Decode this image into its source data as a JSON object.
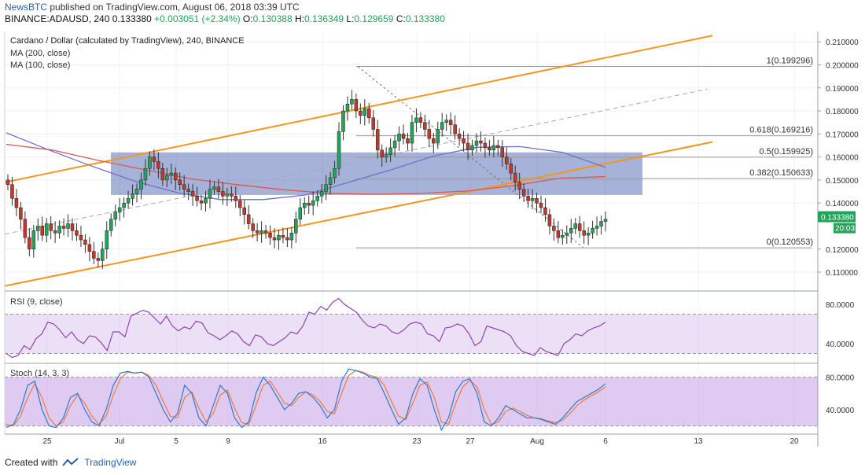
{
  "header": {
    "publisher": "NewsBTC",
    "published_text": "published on TradingView.com, August 06, 2018 03:39 UTC",
    "symbol_line": "BINANCE:ADAUSD, 240",
    "last": "0.133380",
    "change": "+0.003051 (+2.34%)",
    "o_label": "O:",
    "o_value": "0.130388",
    "h_label": "H:",
    "h_value": "0.136349",
    "l_label": "L:",
    "l_value": "0.129659",
    "c_label": "C:",
    "c_value": "0.133380"
  },
  "legend": {
    "title": "Cardano / Dollar (calculated by TradingView), 240, BINANCE",
    "ma200": "MA (200, close)",
    "ma100": "MA (100, close)",
    "rsi": "RSI (9, close)",
    "stoch": "Stoch (14, 3, 3)"
  },
  "footer": {
    "created_with": "Created with",
    "brand": "TradingView"
  },
  "price_tag": {
    "value": "0.133380",
    "countdown": "20:03"
  },
  "colors": {
    "up": "#22a45a",
    "down": "#c0392b",
    "channel": "#f7941d",
    "ma200": "#e05555",
    "ma100": "#6a74c9",
    "zone": "#5c73b8",
    "rsi": "#8e44ad",
    "stoch_k": "#2b7bd6",
    "stoch_d": "#f07a3c",
    "fib": "#999999"
  },
  "chart_data": [
    {
      "type": "candlestick",
      "title": "Cardano / Dollar (calculated by TradingView), 240, BINANCE",
      "y_ticks": [
        "0.210000",
        "0.200000",
        "0.190000",
        "0.180000",
        "0.170000",
        "0.160000",
        "0.150000",
        "0.140000",
        "0.120000",
        "0.110000"
      ],
      "ylim": [
        0.1025,
        0.2145
      ],
      "x_ticks": [
        "25",
        "Jul",
        "5",
        "9",
        "16",
        "23",
        "27",
        "Aug",
        "6",
        "13",
        "20"
      ],
      "closes": [
        0.148,
        0.142,
        0.138,
        0.133,
        0.125,
        0.12,
        0.128,
        0.13,
        0.126,
        0.131,
        0.128,
        0.127,
        0.13,
        0.129,
        0.131,
        0.128,
        0.126,
        0.124,
        0.122,
        0.119,
        0.116,
        0.115,
        0.12,
        0.128,
        0.133,
        0.136,
        0.138,
        0.14,
        0.142,
        0.144,
        0.146,
        0.15,
        0.155,
        0.16,
        0.158,
        0.155,
        0.15,
        0.152,
        0.153,
        0.15,
        0.148,
        0.146,
        0.145,
        0.143,
        0.141,
        0.14,
        0.142,
        0.146,
        0.147,
        0.145,
        0.143,
        0.144,
        0.143,
        0.141,
        0.138,
        0.135,
        0.131,
        0.128,
        0.127,
        0.128,
        0.127,
        0.125,
        0.124,
        0.126,
        0.125,
        0.124,
        0.127,
        0.133,
        0.138,
        0.14,
        0.139,
        0.141,
        0.143,
        0.145,
        0.148,
        0.151,
        0.155,
        0.171,
        0.18,
        0.183,
        0.185,
        0.18,
        0.178,
        0.181,
        0.177,
        0.172,
        0.163,
        0.16,
        0.161,
        0.164,
        0.167,
        0.17,
        0.168,
        0.166,
        0.175,
        0.177,
        0.175,
        0.172,
        0.168,
        0.166,
        0.172,
        0.175,
        0.176,
        0.174,
        0.17,
        0.168,
        0.166,
        0.163,
        0.165,
        0.167,
        0.166,
        0.164,
        0.163,
        0.165,
        0.164,
        0.16,
        0.157,
        0.153,
        0.149,
        0.146,
        0.143,
        0.141,
        0.142,
        0.14,
        0.138,
        0.135,
        0.13,
        0.128,
        0.125,
        0.126,
        0.127,
        0.129,
        0.131,
        0.128,
        0.126,
        0.127,
        0.129,
        0.13,
        0.132,
        0.133
      ],
      "ma200": [
        0.1655,
        0.163,
        0.1585,
        0.1545,
        0.1505,
        0.148,
        0.1458,
        0.1442,
        0.1438,
        0.1442,
        0.1452,
        0.1475,
        0.1508,
        0.1515
      ],
      "ma100": [
        0.1705,
        0.163,
        0.156,
        0.1495,
        0.1445,
        0.1415,
        0.1415,
        0.1435,
        0.149,
        0.1545,
        0.1605,
        0.1642,
        0.1645,
        0.162,
        0.1555
      ],
      "annotations": {
        "channel_upper": [
          0.149,
          0.2127
        ],
        "channel_lower": [
          0.104,
          0.1665
        ],
        "channel_mid": [
          0.1265,
          0.1895
        ],
        "zone": [
          0.1435,
          0.162
        ],
        "fib_levels": [
          {
            "label": "1(0.199296)",
            "value": 0.199296
          },
          {
            "label": "0.618(0.169216)",
            "value": 0.169216
          },
          {
            "label": "0.5(0.159925)",
            "value": 0.159925
          },
          {
            "label": "0.382(0.150633)",
            "value": 0.150633
          },
          {
            "label": "0(0.120553)",
            "value": 0.120553
          }
        ]
      }
    },
    {
      "type": "line",
      "title": "RSI (9, close)",
      "y_ticks": [
        "80.0000",
        "40.0000"
      ],
      "ylim": [
        20,
        92
      ],
      "bands": [
        30,
        70
      ],
      "values": [
        30,
        26,
        28,
        38,
        34,
        45,
        50,
        62,
        60,
        54,
        46,
        52,
        44,
        40,
        48,
        47,
        41,
        33,
        52,
        52,
        47,
        68,
        71,
        74,
        72,
        66,
        60,
        68,
        58,
        53,
        57,
        55,
        63,
        61,
        51,
        48,
        44,
        48,
        53,
        50,
        42,
        38,
        49,
        47,
        40,
        38,
        42,
        46,
        52,
        50,
        58,
        72,
        70,
        78,
        74,
        82,
        86,
        80,
        76,
        72,
        64,
        58,
        56,
        60,
        58,
        52,
        50,
        54,
        60,
        62,
        60,
        50,
        48,
        42,
        56,
        57,
        60,
        58,
        50,
        38,
        42,
        58,
        56,
        54,
        52,
        48,
        38,
        32,
        30,
        28,
        36,
        32,
        30,
        28,
        40,
        44,
        50,
        48,
        53,
        56,
        58,
        62
      ]
    },
    {
      "type": "line",
      "title": "Stoch (14, 3, 3)",
      "y_ticks": [
        "80.0000",
        "40.0000"
      ],
      "ylim": [
        10,
        95
      ],
      "bands": [
        20,
        80
      ],
      "k": [
        18,
        22,
        40,
        70,
        75,
        40,
        20,
        18,
        30,
        55,
        60,
        40,
        25,
        20,
        40,
        70,
        85,
        87,
        85,
        86,
        80,
        60,
        40,
        25,
        35,
        70,
        60,
        30,
        20,
        45,
        70,
        60,
        30,
        18,
        25,
        60,
        80,
        70,
        55,
        40,
        48,
        60,
        62,
        55,
        45,
        30,
        40,
        75,
        90,
        88,
        85,
        80,
        78,
        60,
        40,
        22,
        30,
        60,
        78,
        70,
        40,
        15,
        30,
        62,
        75,
        78,
        60,
        25,
        20,
        30,
        45,
        40,
        35,
        30,
        30,
        28,
        25,
        22,
        30,
        40,
        50,
        55,
        60,
        65,
        72
      ],
      "d": [
        22,
        20,
        32,
        55,
        72,
        55,
        30,
        20,
        25,
        45,
        58,
        48,
        32,
        22,
        32,
        58,
        78,
        86,
        85,
        86,
        82,
        70,
        50,
        32,
        30,
        55,
        62,
        42,
        25,
        35,
        58,
        64,
        42,
        24,
        22,
        45,
        70,
        75,
        62,
        48,
        45,
        55,
        62,
        58,
        50,
        38,
        35,
        60,
        82,
        88,
        86,
        82,
        80,
        70,
        50,
        32,
        28,
        48,
        70,
        74,
        55,
        25,
        22,
        48,
        68,
        76,
        68,
        40,
        22,
        25,
        38,
        42,
        38,
        33,
        30,
        29,
        26,
        24,
        27,
        35,
        45,
        52,
        57,
        62,
        68
      ]
    }
  ]
}
